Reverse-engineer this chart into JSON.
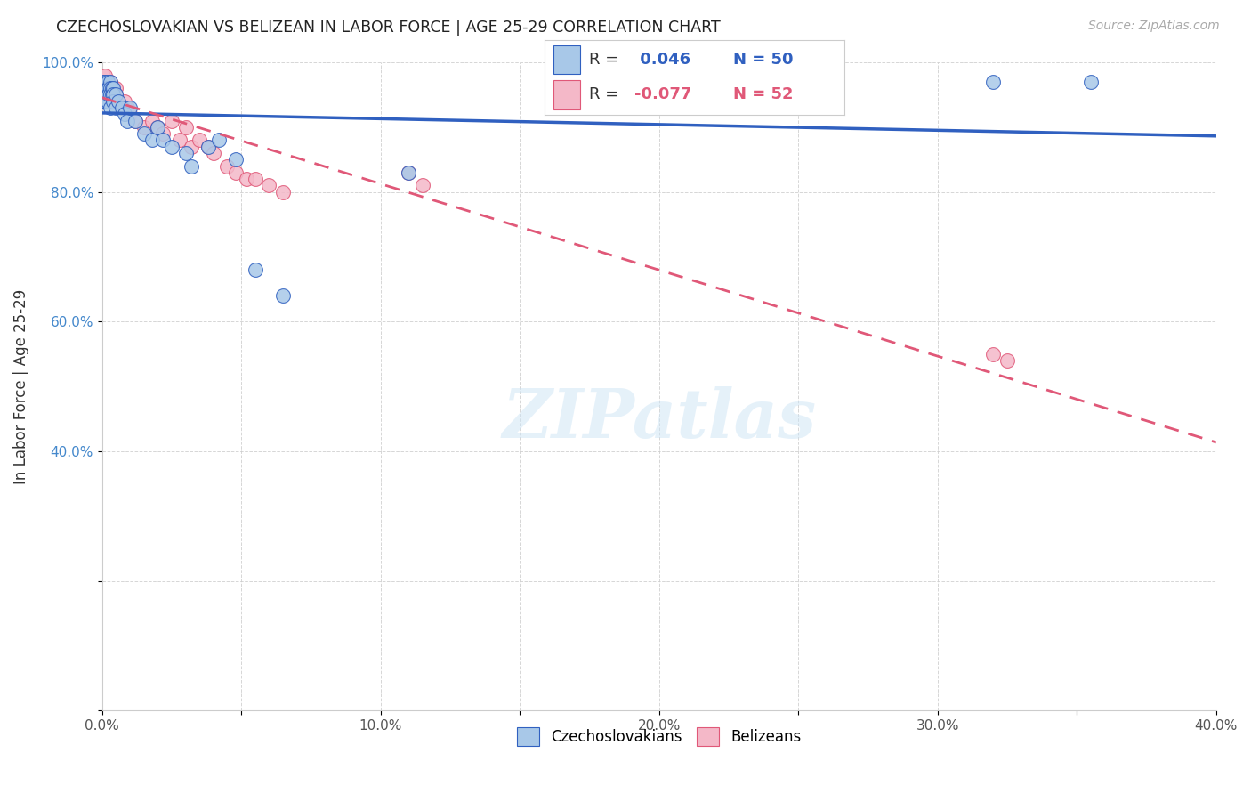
{
  "title": "CZECHOSLOVAKIAN VS BELIZEAN IN LABOR FORCE | AGE 25-29 CORRELATION CHART",
  "source": "Source: ZipAtlas.com",
  "xlabel": "",
  "ylabel": "In Labor Force | Age 25-29",
  "xlim": [
    0.0,
    0.4
  ],
  "ylim": [
    0.0,
    1.0
  ],
  "xticks": [
    0.0,
    0.05,
    0.1,
    0.15,
    0.2,
    0.25,
    0.3,
    0.35,
    0.4
  ],
  "xticklabels": [
    "0.0%",
    "",
    "10.0%",
    "",
    "20.0%",
    "",
    "30.0%",
    "",
    "40.0%"
  ],
  "yticks": [
    0.0,
    0.2,
    0.4,
    0.6,
    0.8,
    1.0
  ],
  "yticklabels": [
    "",
    "",
    "40.0%",
    "60.0%",
    "80.0%",
    "100.0%"
  ],
  "legend_label_czech": "Czechoslovakians",
  "legend_label_belize": "Belizeans",
  "color_czech": "#a8c8e8",
  "color_belize": "#f4b8c8",
  "color_line_czech": "#3060c0",
  "color_line_belize": "#e05878",
  "color_r_value_czech": "#3060c0",
  "color_r_value_belize": "#e05878",
  "watermark": "ZIPatlas",
  "czech_x": [
    0.0005,
    0.0005,
    0.0008,
    0.0008,
    0.001,
    0.001,
    0.001,
    0.0012,
    0.0012,
    0.0015,
    0.0015,
    0.0015,
    0.002,
    0.002,
    0.002,
    0.002,
    0.0025,
    0.0025,
    0.003,
    0.003,
    0.003,
    0.003,
    0.0035,
    0.0035,
    0.004,
    0.004,
    0.004,
    0.005,
    0.005,
    0.006,
    0.007,
    0.008,
    0.009,
    0.01,
    0.012,
    0.015,
    0.018,
    0.02,
    0.022,
    0.025,
    0.03,
    0.032,
    0.038,
    0.042,
    0.048,
    0.055,
    0.065,
    0.11,
    0.32,
    0.355
  ],
  "czech_y": [
    0.97,
    0.96,
    0.95,
    0.94,
    0.96,
    0.95,
    0.94,
    0.97,
    0.96,
    0.96,
    0.95,
    0.94,
    0.97,
    0.96,
    0.95,
    0.94,
    0.96,
    0.95,
    0.97,
    0.96,
    0.95,
    0.93,
    0.96,
    0.95,
    0.96,
    0.95,
    0.94,
    0.95,
    0.93,
    0.94,
    0.93,
    0.92,
    0.91,
    0.93,
    0.91,
    0.89,
    0.88,
    0.9,
    0.88,
    0.87,
    0.86,
    0.84,
    0.87,
    0.88,
    0.85,
    0.68,
    0.64,
    0.83,
    0.97,
    0.97
  ],
  "belize_x": [
    0.0003,
    0.0005,
    0.0005,
    0.0008,
    0.0008,
    0.001,
    0.001,
    0.001,
    0.0012,
    0.0012,
    0.0015,
    0.0015,
    0.002,
    0.002,
    0.002,
    0.0025,
    0.0025,
    0.003,
    0.003,
    0.003,
    0.0035,
    0.004,
    0.004,
    0.005,
    0.005,
    0.006,
    0.007,
    0.008,
    0.009,
    0.01,
    0.012,
    0.015,
    0.018,
    0.02,
    0.022,
    0.025,
    0.028,
    0.03,
    0.032,
    0.035,
    0.038,
    0.04,
    0.045,
    0.048,
    0.052,
    0.055,
    0.06,
    0.065,
    0.11,
    0.115,
    0.32,
    0.325
  ],
  "belize_y": [
    0.97,
    0.98,
    0.96,
    0.97,
    0.96,
    0.98,
    0.97,
    0.95,
    0.97,
    0.96,
    0.97,
    0.96,
    0.97,
    0.96,
    0.95,
    0.96,
    0.95,
    0.97,
    0.96,
    0.95,
    0.96,
    0.96,
    0.95,
    0.96,
    0.95,
    0.94,
    0.93,
    0.94,
    0.93,
    0.92,
    0.91,
    0.9,
    0.91,
    0.9,
    0.89,
    0.91,
    0.88,
    0.9,
    0.87,
    0.88,
    0.87,
    0.86,
    0.84,
    0.83,
    0.82,
    0.82,
    0.81,
    0.8,
    0.83,
    0.81,
    0.55,
    0.54
  ]
}
